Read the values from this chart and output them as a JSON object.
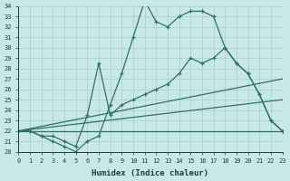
{
  "xlabel": "Humidex (Indice chaleur)",
  "bg_color": "#c8e8e8",
  "grid_color": "#a8cccc",
  "line_color": "#2d7068",
  "x_min": 0,
  "x_max": 23,
  "y_min": 20,
  "y_max": 34,
  "curve1_x": [
    0,
    1,
    2,
    3,
    4,
    5,
    6,
    7,
    8,
    9,
    10,
    11,
    12,
    13,
    14,
    15,
    16,
    17,
    18,
    19,
    20,
    21,
    22,
    23
  ],
  "curve1_y": [
    22,
    22,
    21.5,
    21,
    20.5,
    20,
    21,
    21.5,
    24.5,
    27.5,
    31,
    34.5,
    32.5,
    32,
    33,
    33.5,
    33.5,
    33,
    30,
    28.5,
    27.5,
    25.5,
    23,
    22
  ],
  "curve2_x": [
    0,
    1,
    2,
    3,
    4,
    5,
    6,
    7,
    8,
    9,
    10,
    11,
    12,
    13,
    14,
    15,
    16,
    17,
    18,
    19,
    20,
    21,
    22,
    23
  ],
  "curve2_y": [
    22,
    22,
    21.5,
    21.5,
    21,
    20.5,
    23.5,
    28.5,
    23.5,
    24.5,
    25,
    25.5,
    26,
    26.5,
    27.5,
    29,
    28.5,
    29,
    30,
    28.5,
    27.5,
    25.5,
    23,
    22
  ],
  "line1_x": [
    0,
    23
  ],
  "line1_y": [
    22,
    22
  ],
  "line2_x": [
    0,
    23
  ],
  "line2_y": [
    22,
    27
  ],
  "line3_x": [
    0,
    23
  ],
  "line3_y": [
    22,
    25
  ]
}
